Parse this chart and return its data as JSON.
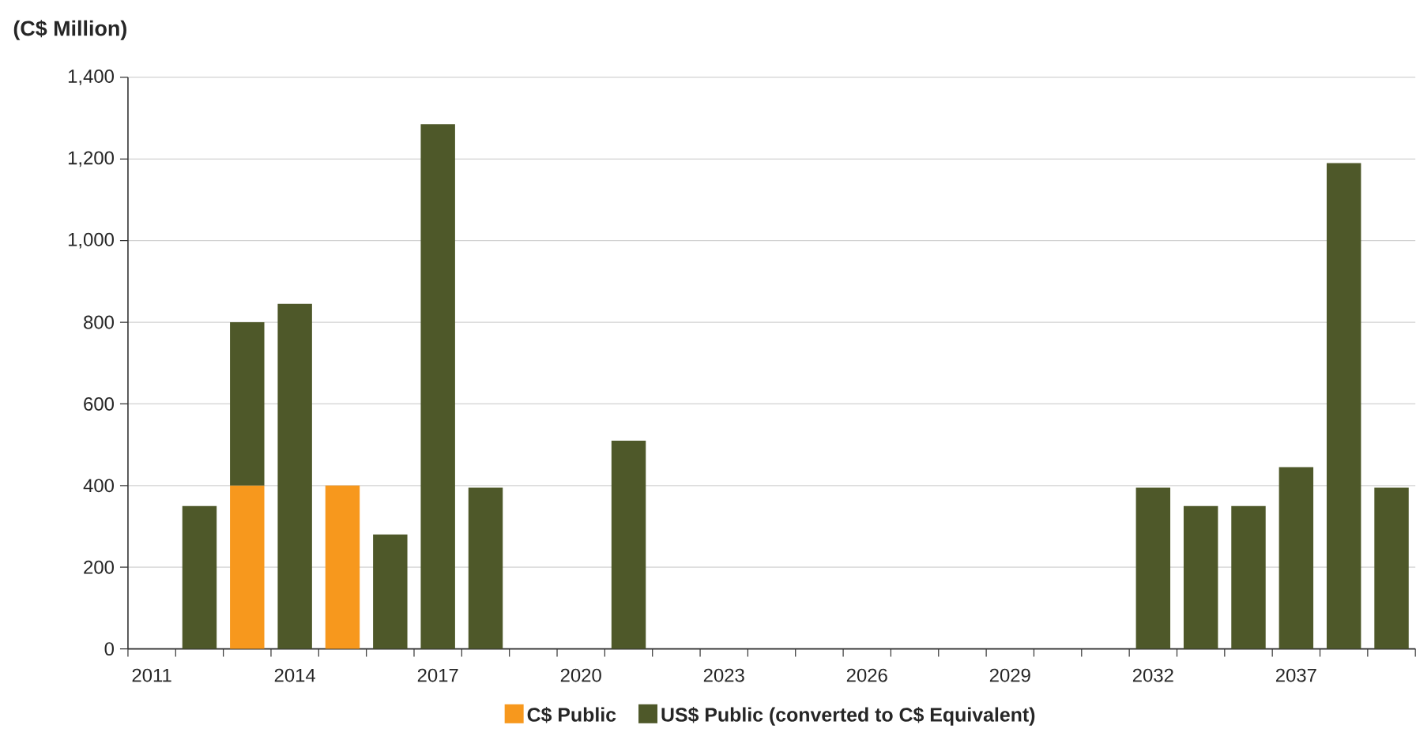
{
  "chart_data": {
    "type": "bar",
    "title": "(C$ Million)",
    "stacked": true,
    "categories": [
      "2011",
      null,
      null,
      "2014",
      null,
      null,
      "2017",
      null,
      null,
      "2020",
      null,
      null,
      "2023",
      null,
      null,
      "2026",
      null,
      null,
      "2029",
      null,
      null,
      "2032",
      null,
      null,
      "2037",
      null,
      null
    ],
    "series": [
      {
        "name": "C$ Public",
        "color": "#f7981d",
        "values": [
          null,
          null,
          400,
          null,
          400,
          null,
          null,
          null,
          null,
          null,
          null,
          null,
          null,
          null,
          null,
          null,
          null,
          null,
          null,
          null,
          null,
          null,
          null,
          null,
          null,
          null,
          null
        ]
      },
      {
        "name": "US$ Public (converted to C$ Equivalent)",
        "color": "#4e5829",
        "values": [
          null,
          350,
          400,
          845,
          null,
          280,
          1285,
          395,
          null,
          null,
          510,
          null,
          null,
          null,
          null,
          null,
          null,
          null,
          null,
          null,
          null,
          395,
          350,
          350,
          445,
          1190,
          395
        ]
      }
    ],
    "ylim": [
      0,
      1400
    ],
    "yticks": [
      0,
      200,
      400,
      600,
      800,
      {
        "value": 1000,
        "label": "1,000"
      },
      {
        "value": 1200,
        "label": "1,200"
      },
      {
        "value": 1400,
        "label": "1,400"
      }
    ],
    "grid": "y",
    "legend": "bottom"
  }
}
